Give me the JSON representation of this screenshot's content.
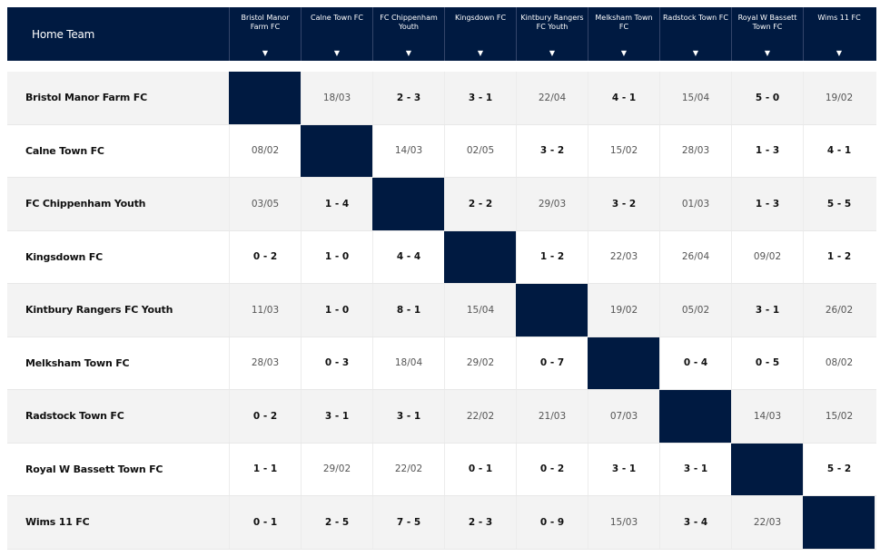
{
  "header": {
    "home_label": "Home Team",
    "arrow": "▼",
    "columns": [
      "Bristol Manor Farm FC",
      "Calne Town FC",
      "FC Chippenham Youth",
      "Kingsdown FC",
      "Kintbury Rangers FC Youth",
      "Melksham Town FC",
      "Radstock Town FC",
      "Royal W Bassett Town FC",
      "Wims 11 FC"
    ]
  },
  "rows": [
    {
      "team": "Bristol Manor Farm FC",
      "cells": [
        "",
        "18/03",
        "2 - 3",
        "3 - 1",
        "22/04",
        "4 - 1",
        "15/04",
        "5 - 0",
        "19/02"
      ]
    },
    {
      "team": "Calne Town FC",
      "cells": [
        "08/02",
        "",
        "14/03",
        "02/05",
        "3 - 2",
        "15/02",
        "28/03",
        "1 - 3",
        "4 - 1"
      ]
    },
    {
      "team": "FC Chippenham Youth",
      "cells": [
        "03/05",
        "1 - 4",
        "",
        "2 - 2",
        "29/03",
        "3 - 2",
        "01/03",
        "1 - 3",
        "5 - 5"
      ]
    },
    {
      "team": "Kingsdown FC",
      "cells": [
        "0 - 2",
        "1 - 0",
        "4 - 4",
        "",
        "1 - 2",
        "22/03",
        "26/04",
        "09/02",
        "1 - 2"
      ]
    },
    {
      "team": "Kintbury Rangers FC Youth",
      "cells": [
        "11/03",
        "1 - 0",
        "8 - 1",
        "15/04",
        "",
        "19/02",
        "05/02",
        "3 - 1",
        "26/02"
      ]
    },
    {
      "team": "Melksham Town FC",
      "cells": [
        "28/03",
        "0 - 3",
        "18/04",
        "29/02",
        "0 - 7",
        "",
        "0 - 4",
        "0 - 5",
        "08/02"
      ]
    },
    {
      "team": "Radstock Town FC",
      "cells": [
        "0 - 2",
        "3 - 1",
        "3 - 1",
        "22/02",
        "21/03",
        "07/03",
        "",
        "14/03",
        "15/02"
      ]
    },
    {
      "team": "Royal W Bassett Town FC",
      "cells": [
        "1 - 1",
        "29/02",
        "22/02",
        "0 - 1",
        "0 - 2",
        "3 - 1",
        "3 - 1",
        "",
        "5 - 2"
      ]
    },
    {
      "team": "Wims 11 FC",
      "cells": [
        "0 - 1",
        "2 - 5",
        "7 - 5",
        "2 - 3",
        "0 - 9",
        "15/03",
        "3 - 4",
        "22/03",
        ""
      ]
    }
  ],
  "colors": {
    "navy": "#001a41",
    "row_alt": "#f3f3f3"
  }
}
